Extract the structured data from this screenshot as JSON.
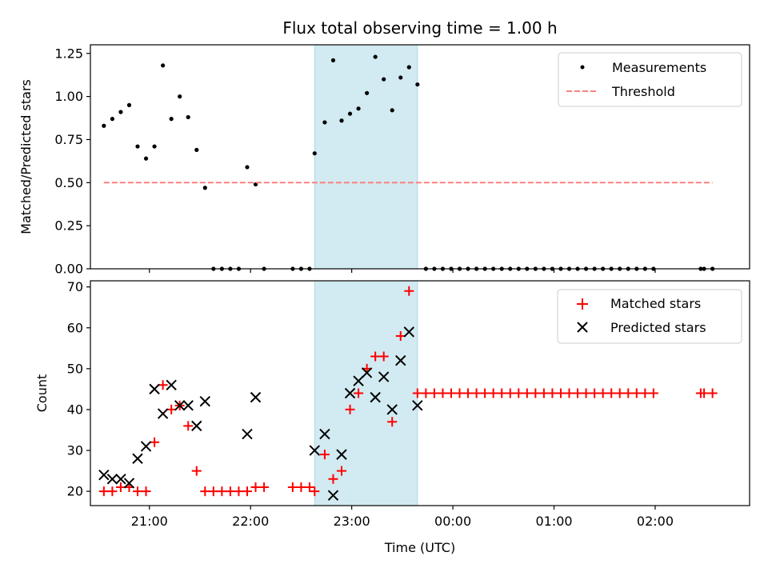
{
  "title": "Flux total observing time = 1.00 h",
  "colors": {
    "measurement": "#000000",
    "threshold": "#ff7f7f",
    "matched": "#ff0000",
    "predicted": "#000000",
    "highlight": "#add8e6"
  },
  "chart_data": [
    {
      "type": "scatter",
      "ylabel": "Matched/Predicted stars",
      "xlim": [
        "20:25",
        "02:56"
      ],
      "ylim": [
        0,
        1.3
      ],
      "yticks": [
        {
          "value": 0,
          "label": "0.00"
        },
        {
          "value": 0.25,
          "label": "0.25"
        },
        {
          "value": 0.5,
          "label": "0.50"
        },
        {
          "value": 0.75,
          "label": "0.75"
        },
        {
          "value": 1.0,
          "label": "1.00"
        },
        {
          "value": 1.25,
          "label": "1.25"
        }
      ],
      "highlight_span": [
        "22:38",
        "23:39"
      ],
      "legend": {
        "position": "top-right",
        "entries": [
          "Measurements",
          "Threshold"
        ]
      },
      "series": [
        {
          "name": "Measurements",
          "marker": "dot",
          "points": [
            [
              "20:33",
              0.83
            ],
            [
              "20:38",
              0.87
            ],
            [
              "20:43",
              0.91
            ],
            [
              "20:48",
              0.95
            ],
            [
              "20:53",
              0.71
            ],
            [
              "20:58",
              0.64
            ],
            [
              "21:03",
              0.71
            ],
            [
              "21:08",
              1.18
            ],
            [
              "21:13",
              0.87
            ],
            [
              "21:18",
              1.0
            ],
            [
              "21:23",
              0.88
            ],
            [
              "21:28",
              0.69
            ],
            [
              "21:33",
              0.47
            ],
            [
              "21:38",
              0.0
            ],
            [
              "21:43",
              0.0
            ],
            [
              "21:48",
              0.0
            ],
            [
              "21:53",
              0.0
            ],
            [
              "21:58",
              0.59
            ],
            [
              "22:03",
              0.49
            ],
            [
              "22:08",
              0.0
            ],
            [
              "22:25",
              0.0
            ],
            [
              "22:30",
              0.0
            ],
            [
              "22:35",
              0.0
            ],
            [
              "22:38",
              0.67
            ],
            [
              "22:44",
              0.85
            ],
            [
              "22:49",
              1.21
            ],
            [
              "22:54",
              0.86
            ],
            [
              "22:59",
              0.9
            ],
            [
              "23:04",
              0.93
            ],
            [
              "23:09",
              1.02
            ],
            [
              "23:14",
              1.23
            ],
            [
              "23:19",
              1.1
            ],
            [
              "23:24",
              0.92
            ],
            [
              "23:29",
              1.11
            ],
            [
              "23:34",
              1.17
            ],
            [
              "23:39",
              1.07
            ],
            [
              "23:44",
              0.0
            ],
            [
              "23:49",
              0.0
            ],
            [
              "23:54",
              0.0
            ],
            [
              "23:59",
              0.0
            ],
            [
              "00:04",
              0.0
            ],
            [
              "00:09",
              0.0
            ],
            [
              "00:14",
              0.0
            ],
            [
              "00:19",
              0.0
            ],
            [
              "00:24",
              0.0
            ],
            [
              "00:29",
              0.0
            ],
            [
              "00:34",
              0.0
            ],
            [
              "00:39",
              0.0
            ],
            [
              "00:44",
              0.0
            ],
            [
              "00:49",
              0.0
            ],
            [
              "00:54",
              0.0
            ],
            [
              "00:59",
              0.0
            ],
            [
              "01:04",
              0.0
            ],
            [
              "01:09",
              0.0
            ],
            [
              "01:14",
              0.0
            ],
            [
              "01:19",
              0.0
            ],
            [
              "01:24",
              0.0
            ],
            [
              "01:29",
              0.0
            ],
            [
              "01:34",
              0.0
            ],
            [
              "01:39",
              0.0
            ],
            [
              "01:44",
              0.0
            ],
            [
              "01:49",
              0.0
            ],
            [
              "01:54",
              0.0
            ],
            [
              "01:59",
              0.0
            ],
            [
              "02:27",
              0.0
            ],
            [
              "02:29",
              0.0
            ],
            [
              "02:34",
              0.0
            ]
          ]
        },
        {
          "name": "Threshold",
          "marker": "dashed-line",
          "points": [
            [
              "20:33",
              0.5
            ],
            [
              "02:34",
              0.5
            ]
          ]
        }
      ]
    },
    {
      "type": "scatter",
      "xlabel": "Time (UTC)",
      "ylabel": "Count",
      "xlim": [
        "20:25",
        "02:56"
      ],
      "ylim": [
        16.5,
        71.5
      ],
      "yticks": [
        {
          "value": 20,
          "label": "20"
        },
        {
          "value": 30,
          "label": "30"
        },
        {
          "value": 40,
          "label": "40"
        },
        {
          "value": 50,
          "label": "50"
        },
        {
          "value": 60,
          "label": "60"
        },
        {
          "value": 70,
          "label": "70"
        }
      ],
      "xticks": [
        "21:00",
        "22:00",
        "23:00",
        "00:00",
        "01:00",
        "02:00"
      ],
      "highlight_span": [
        "22:38",
        "23:39"
      ],
      "legend": {
        "position": "top-right",
        "entries": [
          "Matched stars",
          "Predicted stars"
        ]
      },
      "series": [
        {
          "name": "Matched stars",
          "marker": "plus",
          "points": [
            [
              "20:33",
              20
            ],
            [
              "20:38",
              20
            ],
            [
              "20:43",
              21
            ],
            [
              "20:48",
              21
            ],
            [
              "20:53",
              20
            ],
            [
              "20:58",
              20
            ],
            [
              "21:03",
              32
            ],
            [
              "21:08",
              46
            ],
            [
              "21:13",
              40
            ],
            [
              "21:18",
              41
            ],
            [
              "21:23",
              36
            ],
            [
              "21:28",
              25
            ],
            [
              "21:33",
              20
            ],
            [
              "21:38",
              20
            ],
            [
              "21:43",
              20
            ],
            [
              "21:48",
              20
            ],
            [
              "21:53",
              20
            ],
            [
              "21:58",
              20
            ],
            [
              "22:03",
              21
            ],
            [
              "22:08",
              21
            ],
            [
              "22:25",
              21
            ],
            [
              "22:30",
              21
            ],
            [
              "22:35",
              21
            ],
            [
              "22:38",
              20
            ],
            [
              "22:44",
              29
            ],
            [
              "22:49",
              23
            ],
            [
              "22:54",
              25
            ],
            [
              "22:59",
              40
            ],
            [
              "23:04",
              44
            ],
            [
              "23:09",
              50
            ],
            [
              "23:14",
              53
            ],
            [
              "23:19",
              53
            ],
            [
              "23:24",
              37
            ],
            [
              "23:29",
              58
            ],
            [
              "23:34",
              69
            ],
            [
              "23:39",
              44
            ],
            [
              "23:44",
              44
            ],
            [
              "23:49",
              44
            ],
            [
              "23:54",
              44
            ],
            [
              "23:59",
              44
            ],
            [
              "00:04",
              44
            ],
            [
              "00:09",
              44
            ],
            [
              "00:14",
              44
            ],
            [
              "00:19",
              44
            ],
            [
              "00:24",
              44
            ],
            [
              "00:29",
              44
            ],
            [
              "00:34",
              44
            ],
            [
              "00:39",
              44
            ],
            [
              "00:44",
              44
            ],
            [
              "00:49",
              44
            ],
            [
              "00:54",
              44
            ],
            [
              "00:59",
              44
            ],
            [
              "01:04",
              44
            ],
            [
              "01:09",
              44
            ],
            [
              "01:14",
              44
            ],
            [
              "01:19",
              44
            ],
            [
              "01:24",
              44
            ],
            [
              "01:29",
              44
            ],
            [
              "01:34",
              44
            ],
            [
              "01:39",
              44
            ],
            [
              "01:44",
              44
            ],
            [
              "01:49",
              44
            ],
            [
              "01:54",
              44
            ],
            [
              "01:59",
              44
            ],
            [
              "02:27",
              44
            ],
            [
              "02:29",
              44
            ],
            [
              "02:34",
              44
            ]
          ]
        },
        {
          "name": "Predicted stars",
          "marker": "x",
          "points": [
            [
              "20:33",
              24
            ],
            [
              "20:38",
              23
            ],
            [
              "20:43",
              23
            ],
            [
              "20:48",
              22
            ],
            [
              "20:53",
              28
            ],
            [
              "20:58",
              31
            ],
            [
              "21:03",
              45
            ],
            [
              "21:08",
              39
            ],
            [
              "21:13",
              46
            ],
            [
              "21:18",
              41
            ],
            [
              "21:23",
              41
            ],
            [
              "21:28",
              36
            ],
            [
              "21:33",
              42
            ],
            [
              "21:58",
              34
            ],
            [
              "22:03",
              43
            ],
            [
              "22:38",
              30
            ],
            [
              "22:44",
              34
            ],
            [
              "22:49",
              19
            ],
            [
              "22:54",
              29
            ],
            [
              "22:59",
              44
            ],
            [
              "23:04",
              47
            ],
            [
              "23:09",
              49
            ],
            [
              "23:14",
              43
            ],
            [
              "23:19",
              48
            ],
            [
              "23:24",
              40
            ],
            [
              "23:29",
              52
            ],
            [
              "23:34",
              59
            ],
            [
              "23:39",
              41
            ]
          ]
        }
      ]
    }
  ]
}
